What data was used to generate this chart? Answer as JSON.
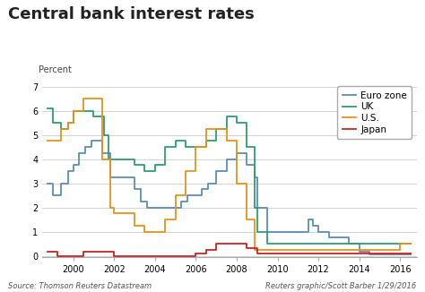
{
  "title": "Central bank interest rates",
  "ylabel": "Percent",
  "source_left": "Source: Thomson Reuters Datastream",
  "source_right": "Reuters graphic/Scott Barber 1/29/2016",
  "ylim": [
    -0.05,
    7.2
  ],
  "xlim": [
    1998.5,
    2016.8
  ],
  "xticks": [
    2000,
    2002,
    2004,
    2006,
    2008,
    2010,
    2012,
    2014,
    2016
  ],
  "yticks": [
    0,
    1,
    2,
    3,
    4,
    5,
    6,
    7
  ],
  "colors": {
    "euro_zone": "#5b8db8",
    "uk": "#2e9e6e",
    "us": "#e8921a",
    "japan": "#cc2222"
  },
  "legend": [
    "Euro zone",
    "UK",
    "U.S.",
    "Japan"
  ],
  "euro_zone": {
    "x": [
      1998.75,
      1999.0,
      1999.4,
      1999.75,
      2000.0,
      2000.3,
      2000.6,
      2000.9,
      2001.0,
      2001.4,
      2001.8,
      2002.0,
      2002.5,
      2003.0,
      2003.3,
      2003.6,
      2004.0,
      2004.5,
      2005.0,
      2005.3,
      2005.6,
      2006.0,
      2006.3,
      2006.6,
      2007.0,
      2007.5,
      2008.0,
      2008.5,
      2008.9,
      2009.0,
      2009.5,
      2010.0,
      2010.5,
      2011.0,
      2011.5,
      2011.75,
      2012.0,
      2012.5,
      2013.0,
      2013.5,
      2014.0,
      2014.5,
      2015.0,
      2015.5,
      2016.0,
      2016.5
    ],
    "y": [
      3.0,
      2.5,
      3.0,
      3.5,
      3.75,
      4.25,
      4.5,
      4.75,
      4.75,
      4.25,
      3.25,
      3.25,
      3.25,
      2.75,
      2.25,
      2.0,
      2.0,
      2.0,
      2.0,
      2.25,
      2.5,
      2.5,
      2.75,
      3.0,
      3.5,
      4.0,
      4.25,
      3.75,
      3.25,
      2.0,
      1.0,
      1.0,
      1.0,
      1.0,
      1.5,
      1.25,
      1.0,
      0.75,
      0.75,
      0.5,
      0.15,
      0.05,
      0.05,
      0.05,
      0.05,
      0.05
    ]
  },
  "uk": {
    "x": [
      1998.75,
      1999.0,
      1999.4,
      1999.75,
      2000.0,
      2000.5,
      2001.0,
      2001.5,
      2001.75,
      2002.0,
      2002.5,
      2003.0,
      2003.5,
      2004.0,
      2004.5,
      2005.0,
      2005.5,
      2006.0,
      2006.5,
      2007.0,
      2007.5,
      2008.0,
      2008.5,
      2008.9,
      2009.0,
      2009.5,
      2010.0,
      2015.5,
      2016.0,
      2016.5
    ],
    "y": [
      6.1,
      5.5,
      5.25,
      5.5,
      6.0,
      6.0,
      5.75,
      5.0,
      4.0,
      4.0,
      4.0,
      3.75,
      3.5,
      3.75,
      4.5,
      4.75,
      4.5,
      4.5,
      4.75,
      5.25,
      5.75,
      5.5,
      4.5,
      2.0,
      1.0,
      0.5,
      0.5,
      0.5,
      0.5,
      0.5
    ]
  },
  "us": {
    "x": [
      1998.75,
      1999.0,
      1999.4,
      1999.75,
      2000.0,
      2000.5,
      2001.0,
      2001.4,
      2001.8,
      2002.0,
      2002.5,
      2003.0,
      2003.5,
      2004.0,
      2004.5,
      2005.0,
      2005.5,
      2006.0,
      2006.5,
      2007.0,
      2007.5,
      2008.0,
      2008.5,
      2008.9,
      2009.0,
      2009.5,
      2015.75,
      2016.0,
      2016.5
    ],
    "y": [
      4.75,
      4.75,
      5.25,
      5.5,
      6.0,
      6.5,
      6.5,
      4.0,
      2.0,
      1.75,
      1.75,
      1.25,
      1.0,
      1.0,
      1.5,
      2.5,
      3.5,
      4.5,
      5.25,
      5.25,
      4.75,
      3.0,
      1.5,
      0.25,
      0.25,
      0.25,
      0.25,
      0.5,
      0.5
    ]
  },
  "japan": {
    "x": [
      1998.75,
      1999.0,
      1999.25,
      2000.0,
      2000.5,
      2001.0,
      2001.5,
      2002.0,
      2005.5,
      2006.0,
      2006.5,
      2007.0,
      2008.0,
      2008.5,
      2009.0,
      2009.5,
      2016.0,
      2016.5
    ],
    "y": [
      0.15,
      0.15,
      0.0,
      0.0,
      0.15,
      0.15,
      0.15,
      0.0,
      0.0,
      0.1,
      0.25,
      0.5,
      0.5,
      0.3,
      0.1,
      0.1,
      0.1,
      0.1
    ]
  }
}
